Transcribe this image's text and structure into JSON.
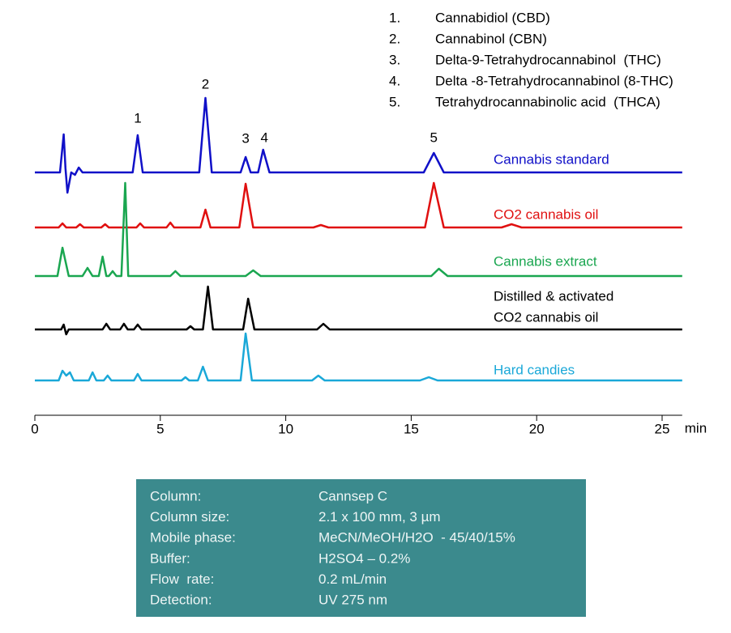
{
  "chart_data": {
    "type": "line",
    "xlabel": "min",
    "xlim": [
      0,
      25.8
    ],
    "xticks": [
      0,
      5,
      10,
      15,
      20,
      25
    ],
    "series": [
      {
        "name": [
          "Cannabis standard"
        ],
        "color": "#1010c8",
        "x": [
          0,
          1.0,
          1.15,
          1.22,
          1.3,
          1.45,
          1.6,
          1.75,
          1.9,
          3.9,
          4.1,
          4.3,
          6.55,
          6.8,
          7.05,
          8.2,
          8.4,
          8.6,
          8.9,
          9.1,
          9.35,
          15.5,
          15.9,
          16.3,
          25.8
        ],
        "values": [
          0,
          0,
          47,
          5,
          -25,
          0,
          -3,
          6,
          0,
          0,
          46,
          0,
          0,
          92,
          0,
          0,
          19,
          0,
          0,
          28,
          0,
          0,
          24,
          0,
          0
        ]
      },
      {
        "name": [
          "CO2 cannabis oil"
        ],
        "color": "#e01010",
        "x": [
          0,
          0.95,
          1.1,
          1.25,
          1.65,
          1.8,
          1.95,
          2.65,
          2.8,
          2.95,
          4.05,
          4.2,
          4.35,
          5.25,
          5.4,
          5.55,
          6.6,
          6.8,
          7.0,
          8.15,
          8.4,
          8.7,
          11.1,
          11.4,
          11.7,
          15.55,
          15.9,
          16.3,
          18.6,
          19.0,
          19.4,
          25.8
        ],
        "values": [
          0,
          0,
          5,
          0,
          0,
          4,
          0,
          0,
          4,
          0,
          0,
          5,
          0,
          0,
          6,
          0,
          0,
          22,
          0,
          0,
          54,
          0,
          0,
          3,
          0,
          0,
          55,
          0,
          0,
          4,
          0,
          0
        ]
      },
      {
        "name": [
          "Cannabis extract"
        ],
        "color": "#1aa650",
        "x": [
          0,
          0.9,
          1.1,
          1.35,
          1.9,
          2.1,
          2.3,
          2.55,
          2.7,
          2.85,
          2.95,
          3.1,
          3.25,
          3.45,
          3.6,
          3.72,
          5.4,
          5.6,
          5.8,
          8.4,
          8.7,
          9.0,
          15.8,
          16.1,
          16.45,
          25.8
        ],
        "values": [
          0,
          0,
          35,
          0,
          0,
          10,
          0,
          0,
          24,
          0,
          0,
          6,
          0,
          0,
          115,
          0,
          0,
          6,
          0,
          0,
          7,
          0,
          0,
          9,
          0,
          0
        ]
      },
      {
        "name": [
          "Distilled & activated",
          "CO2 cannabis oil"
        ],
        "color": "#000000",
        "x": [
          0,
          1.05,
          1.15,
          1.25,
          1.35,
          2.7,
          2.85,
          3.0,
          3.4,
          3.55,
          3.7,
          3.95,
          4.1,
          4.25,
          6.05,
          6.2,
          6.35,
          6.7,
          6.9,
          7.1,
          8.3,
          8.5,
          8.75,
          11.25,
          11.5,
          11.75,
          25.8
        ],
        "values": [
          0,
          0,
          6,
          -6,
          0,
          0,
          7,
          0,
          0,
          7,
          0,
          0,
          6,
          0,
          0,
          4,
          0,
          0,
          53,
          0,
          0,
          38,
          0,
          0,
          7,
          0,
          0
        ]
      },
      {
        "name": [
          "Hard candies"
        ],
        "color": "#1aa8d8",
        "x": [
          0,
          0.95,
          1.1,
          1.25,
          1.4,
          1.55,
          2.15,
          2.3,
          2.45,
          2.75,
          2.9,
          3.05,
          3.95,
          4.1,
          4.25,
          5.85,
          6.0,
          6.15,
          6.5,
          6.7,
          6.9,
          8.2,
          8.4,
          8.65,
          11.05,
          11.3,
          11.55,
          15.35,
          15.7,
          16.05,
          25.8
        ],
        "values": [
          0,
          0,
          12,
          6,
          10,
          0,
          0,
          10,
          0,
          0,
          6,
          0,
          0,
          8,
          0,
          0,
          4,
          0,
          0,
          17,
          0,
          0,
          58,
          0,
          0,
          6,
          0,
          0,
          4,
          0,
          0
        ]
      }
    ],
    "annotations": [
      {
        "text": "1",
        "x": 4.1,
        "y": 66
      },
      {
        "text": "2",
        "x": 6.8,
        "y": 108
      },
      {
        "text": "3",
        "x": 8.4,
        "y": 41
      },
      {
        "text": "4",
        "x": 9.15,
        "y": 42
      },
      {
        "text": "5",
        "x": 15.9,
        "y": 42
      }
    ],
    "peak_legend": [
      {
        "number": "1.",
        "name": "Cannabidiol (CBD)"
      },
      {
        "number": "2.",
        "name": "Cannabinol (CBN)"
      },
      {
        "number": "3.",
        "name": "Delta-9-Tetrahydrocannabinol  (THC)"
      },
      {
        "number": "4.",
        "name": "Delta -8-Tetrahydrocannabinol (8-THC)"
      },
      {
        "number": "5.",
        "name": "Tetrahydrocannabinolic acid  (THCA)"
      }
    ]
  },
  "conditions": {
    "rows": [
      [
        "Column:",
        "Cannsep C"
      ],
      [
        "Column size:",
        "2.1 x 100 mm, 3 µm"
      ],
      [
        "Mobile phase:",
        "MeCN/MeOH/H2O  - 45/40/15%"
      ],
      [
        "Buffer:",
        "H2SO4 – 0.2%"
      ],
      [
        "Flow  rate:",
        "0.2 mL/min"
      ],
      [
        "Detection:",
        "UV 275 nm"
      ]
    ]
  }
}
